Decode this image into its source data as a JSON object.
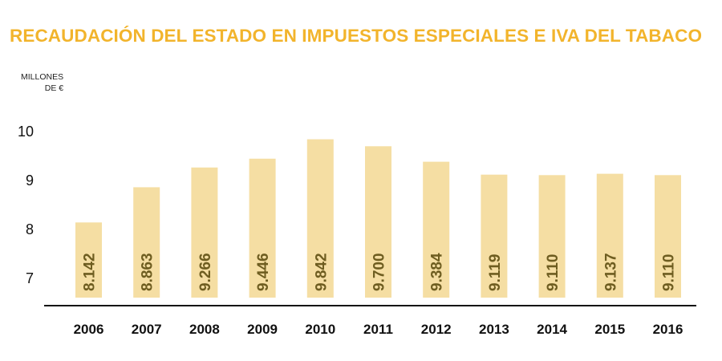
{
  "chart_data": {
    "type": "bar",
    "title": "RECAUDACIÓN DEL ESTADO EN IMPUESTOS ESPECIALES E IVA DEL TABACO",
    "unit_label_line1": "MILLONES",
    "unit_label_line2": "DE €",
    "categories": [
      "2006",
      "2007",
      "2008",
      "2009",
      "2010",
      "2011",
      "2012",
      "2013",
      "2014",
      "2015",
      "2016"
    ],
    "values": [
      8142,
      8863,
      9266,
      9446,
      9842,
      9700,
      9384,
      9119,
      9110,
      9137,
      9110
    ],
    "value_labels": [
      "8.142",
      "8.863",
      "9.266",
      "9.446",
      "9.842",
      "9.700",
      "9.384",
      "9.119",
      "9.110",
      "9.137",
      "9.110"
    ],
    "y_ticks": [
      7,
      8,
      9,
      10
    ],
    "y_tick_labels": [
      "7",
      "8",
      "9",
      "10"
    ],
    "y_unit_per_tick": 1000,
    "ylim": [
      6500,
      10500
    ],
    "grid": false,
    "colors": {
      "title": "#f2b42c",
      "bar": "#f5dea3",
      "value_label": "#6e5d20",
      "axis": "#111111",
      "tick_label": "#111111"
    }
  }
}
